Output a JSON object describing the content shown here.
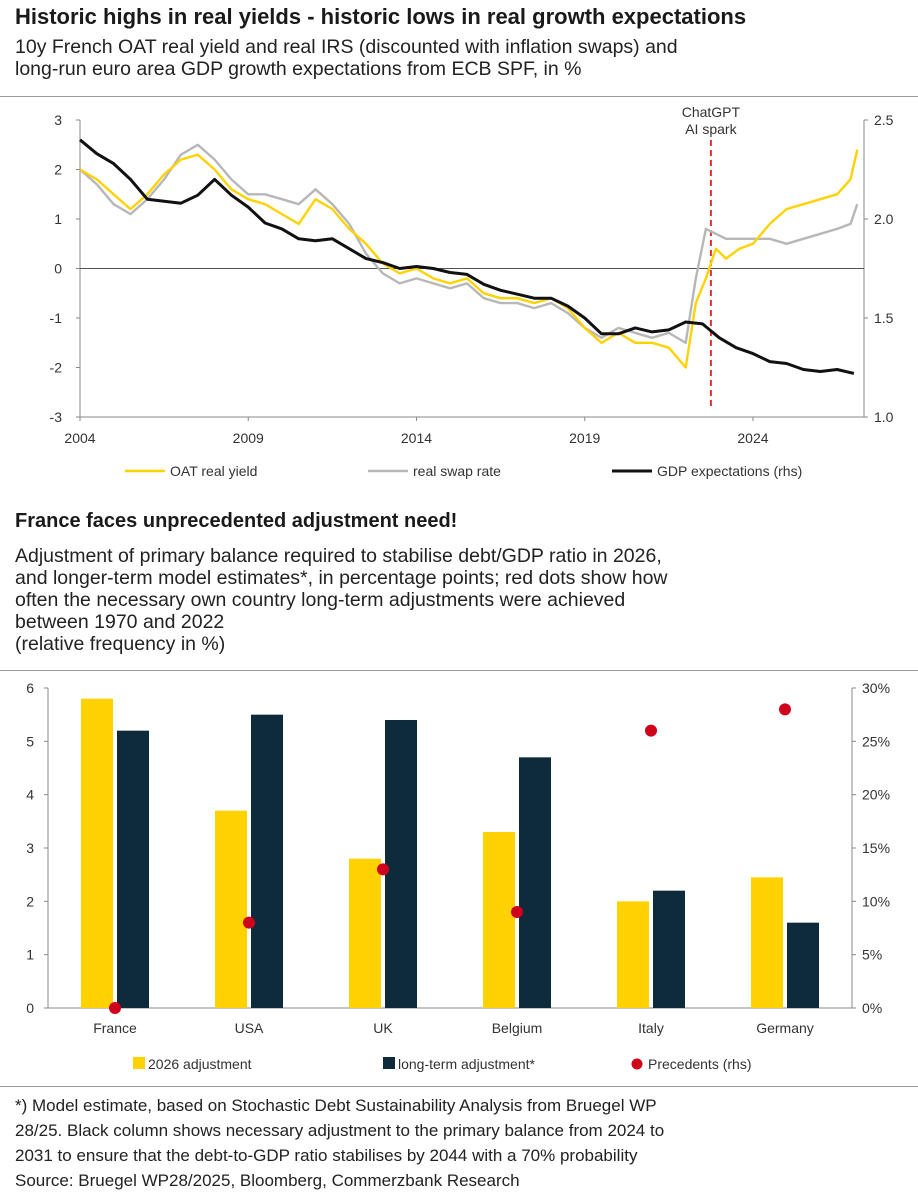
{
  "top": {
    "title": "Historic highs in real yields - historic lows in real growth expectations",
    "subtitle_lines": [
      "10y French OAT real yield and real IRS (discounted with inflation swaps) and",
      "long-run euro area GDP growth expectations from ECB SPF, in %"
    ]
  },
  "bottom": {
    "title": "France faces unprecedented adjustment need!",
    "subtitle_lines": [
      "Adjustment of primary balance required to stabilise debt/GDP ratio in 2026,",
      "and longer-term model estimates*, in percentage points; red dots show how",
      "often the necessary own country long-term adjustments were achieved",
      "between 1970 and 2022",
      "(relative frequency in %)"
    ]
  },
  "footnote_lines": [
    "*) Model estimate, based on Stochastic Debt Sustainability Analysis from Bruegel WP",
    "28/25. Black column shows necessary adjustment to the primary balance from 2024 to",
    "2031 to ensure that the debt-to-GDP ratio stabilises by 2044 with a 70% probability",
    "Source: Bruegel WP28/2025, Bloomberg, Commerzbank Research"
  ],
  "chart_data": [
    {
      "type": "line",
      "x_ticks": [
        "2004",
        "2009",
        "2014",
        "2019",
        "2024"
      ],
      "xlim": [
        2004,
        2027.3
      ],
      "ylim": [
        -3,
        3
      ],
      "y_ticks": [
        "3",
        "2",
        "1",
        "0",
        "-1",
        "-2",
        "-3"
      ],
      "y2lim": [
        1.0,
        2.5
      ],
      "y2_ticks": [
        "2.5",
        "2.0",
        "1.5",
        "1.0"
      ],
      "annotation": {
        "x": 2022.75,
        "lines": [
          "ChatGPT",
          "AI spark"
        ]
      },
      "colors": {
        "oat": "#ffd200",
        "swap": "#b7b7b7",
        "gdp": "#111111",
        "annotation": "#e03030"
      },
      "series": [
        {
          "name": "OAT real yield",
          "axis": "left",
          "x": [
            2004.0,
            2004.5,
            2005.0,
            2005.5,
            2006.0,
            2006.5,
            2007.0,
            2007.5,
            2008.0,
            2008.5,
            2009.0,
            2009.5,
            2010.0,
            2010.5,
            2011.0,
            2011.5,
            2012.0,
            2012.5,
            2013.0,
            2013.5,
            2014.0,
            2014.5,
            2015.0,
            2015.5,
            2016.0,
            2016.5,
            2017.0,
            2017.5,
            2018.0,
            2018.5,
            2019.0,
            2019.5,
            2020.0,
            2020.5,
            2021.0,
            2021.5,
            2022.0,
            2022.3,
            2022.6,
            2022.9,
            2023.2,
            2023.6,
            2024.0,
            2024.5,
            2025.0,
            2025.5,
            2026.0,
            2026.5,
            2026.9,
            2027.1
          ],
          "y": [
            2.0,
            1.8,
            1.5,
            1.2,
            1.5,
            1.9,
            2.2,
            2.3,
            2.0,
            1.6,
            1.4,
            1.3,
            1.1,
            0.9,
            1.4,
            1.2,
            0.8,
            0.5,
            0.1,
            -0.1,
            0.0,
            -0.2,
            -0.3,
            -0.2,
            -0.5,
            -0.6,
            -0.6,
            -0.7,
            -0.6,
            -0.8,
            -1.2,
            -1.5,
            -1.3,
            -1.5,
            -1.5,
            -1.6,
            -2.0,
            -0.7,
            -0.2,
            0.4,
            0.2,
            0.4,
            0.5,
            0.9,
            1.2,
            1.3,
            1.4,
            1.5,
            1.8,
            2.4
          ]
        },
        {
          "name": "real swap rate",
          "axis": "left",
          "x": [
            2004.0,
            2004.5,
            2005.0,
            2005.5,
            2006.0,
            2006.5,
            2007.0,
            2007.5,
            2008.0,
            2008.5,
            2009.0,
            2009.5,
            2010.0,
            2010.5,
            2011.0,
            2011.5,
            2012.0,
            2012.5,
            2013.0,
            2013.5,
            2014.0,
            2014.5,
            2015.0,
            2015.5,
            2016.0,
            2016.5,
            2017.0,
            2017.5,
            2018.0,
            2018.5,
            2019.0,
            2019.5,
            2020.0,
            2020.5,
            2021.0,
            2021.5,
            2022.0,
            2022.3,
            2022.6,
            2022.9,
            2023.2,
            2023.6,
            2024.0,
            2024.5,
            2025.0,
            2025.5,
            2026.0,
            2026.5,
            2026.9,
            2027.1
          ],
          "y": [
            2.0,
            1.7,
            1.3,
            1.1,
            1.4,
            1.8,
            2.3,
            2.5,
            2.2,
            1.8,
            1.5,
            1.5,
            1.4,
            1.3,
            1.6,
            1.3,
            0.9,
            0.3,
            -0.1,
            -0.3,
            -0.2,
            -0.3,
            -0.4,
            -0.3,
            -0.6,
            -0.7,
            -0.7,
            -0.8,
            -0.7,
            -0.9,
            -1.2,
            -1.4,
            -1.2,
            -1.3,
            -1.4,
            -1.3,
            -1.5,
            -0.2,
            0.8,
            0.7,
            0.6,
            0.6,
            0.6,
            0.6,
            0.5,
            0.6,
            0.7,
            0.8,
            0.9,
            1.3
          ]
        },
        {
          "name": "GDP expectations (rhs)",
          "axis": "right",
          "x": [
            2004.0,
            2004.5,
            2005.0,
            2005.5,
            2006.0,
            2006.5,
            2007.0,
            2007.5,
            2008.0,
            2008.5,
            2009.0,
            2009.5,
            2010.0,
            2010.5,
            2011.0,
            2011.5,
            2012.0,
            2012.5,
            2013.0,
            2013.5,
            2014.0,
            2014.5,
            2015.0,
            2015.5,
            2016.0,
            2016.5,
            2017.0,
            2017.5,
            2018.0,
            2018.5,
            2019.0,
            2019.5,
            2020.0,
            2020.5,
            2021.0,
            2021.5,
            2022.0,
            2022.5,
            2023.0,
            2023.5,
            2024.0,
            2024.5,
            2025.0,
            2025.5,
            2026.0,
            2026.5,
            2027.0
          ],
          "y": [
            2.4,
            2.33,
            2.28,
            2.2,
            2.1,
            2.09,
            2.08,
            2.12,
            2.2,
            2.12,
            2.06,
            1.98,
            1.95,
            1.9,
            1.89,
            1.9,
            1.85,
            1.8,
            1.78,
            1.75,
            1.76,
            1.75,
            1.73,
            1.72,
            1.67,
            1.64,
            1.62,
            1.6,
            1.6,
            1.56,
            1.5,
            1.42,
            1.42,
            1.45,
            1.43,
            1.44,
            1.48,
            1.47,
            1.4,
            1.35,
            1.32,
            1.28,
            1.27,
            1.24,
            1.23,
            1.24,
            1.22
          ]
        }
      ]
    },
    {
      "type": "bar",
      "categories": [
        "France",
        "USA",
        "UK",
        "Belgium",
        "Italy",
        "Germany"
      ],
      "ylim": [
        0,
        6
      ],
      "y_ticks": [
        "6",
        "5",
        "4",
        "3",
        "2",
        "1",
        "0"
      ],
      "y2lim": [
        0,
        30
      ],
      "y2_ticks": [
        "30%",
        "25%",
        "20%",
        "15%",
        "10%",
        "5%",
        "0%"
      ],
      "colors": {
        "adj2026": "#ffd200",
        "longterm": "#0e2b3b",
        "precedents": "#d0021b"
      },
      "series": [
        {
          "name": "2026 adjustment",
          "values": [
            5.8,
            3.7,
            2.8,
            3.3,
            2.0,
            2.45
          ]
        },
        {
          "name": "long-term adjustment*",
          "values": [
            5.2,
            5.5,
            5.4,
            4.7,
            2.2,
            1.6
          ]
        },
        {
          "name": "Precedents (rhs)",
          "axis": "right",
          "values": [
            0,
            8,
            13,
            9,
            26,
            28
          ]
        }
      ]
    }
  ]
}
